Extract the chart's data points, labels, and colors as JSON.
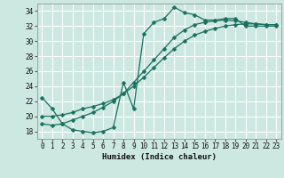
{
  "xlabel": "Humidex (Indice chaleur)",
  "xlim": [
    -0.5,
    23.5
  ],
  "ylim": [
    17,
    35
  ],
  "yticks": [
    18,
    20,
    22,
    24,
    26,
    28,
    30,
    32,
    34
  ],
  "xticks": [
    0,
    1,
    2,
    3,
    4,
    5,
    6,
    7,
    8,
    9,
    10,
    11,
    12,
    13,
    14,
    15,
    16,
    17,
    18,
    19,
    20,
    21,
    22,
    23
  ],
  "background_color": "#cce8e0",
  "grid_color": "#ffffff",
  "line_color": "#1a7060",
  "line1_y": [
    22.5,
    21.0,
    19.0,
    18.2,
    18.0,
    17.8,
    18.0,
    18.5,
    24.5,
    21.0,
    31.0,
    32.5,
    33.0,
    34.5,
    33.8,
    33.5,
    32.8,
    32.8,
    33.0,
    33.0,
    32.0,
    32.0,
    32.0,
    32.0
  ],
  "line2_y": [
    20.0,
    20.0,
    20.2,
    20.5,
    21.0,
    21.3,
    21.7,
    22.2,
    23.0,
    24.0,
    25.2,
    26.5,
    27.8,
    29.0,
    30.0,
    30.8,
    31.3,
    31.7,
    32.0,
    32.2,
    32.3,
    32.3,
    32.2,
    32.2
  ],
  "line3_y": [
    19.0,
    18.8,
    19.0,
    19.5,
    20.0,
    20.5,
    21.2,
    22.0,
    23.0,
    24.5,
    26.0,
    27.5,
    29.0,
    30.5,
    31.5,
    32.2,
    32.5,
    32.7,
    32.8,
    32.7,
    32.5,
    32.3,
    32.2,
    32.2
  ]
}
